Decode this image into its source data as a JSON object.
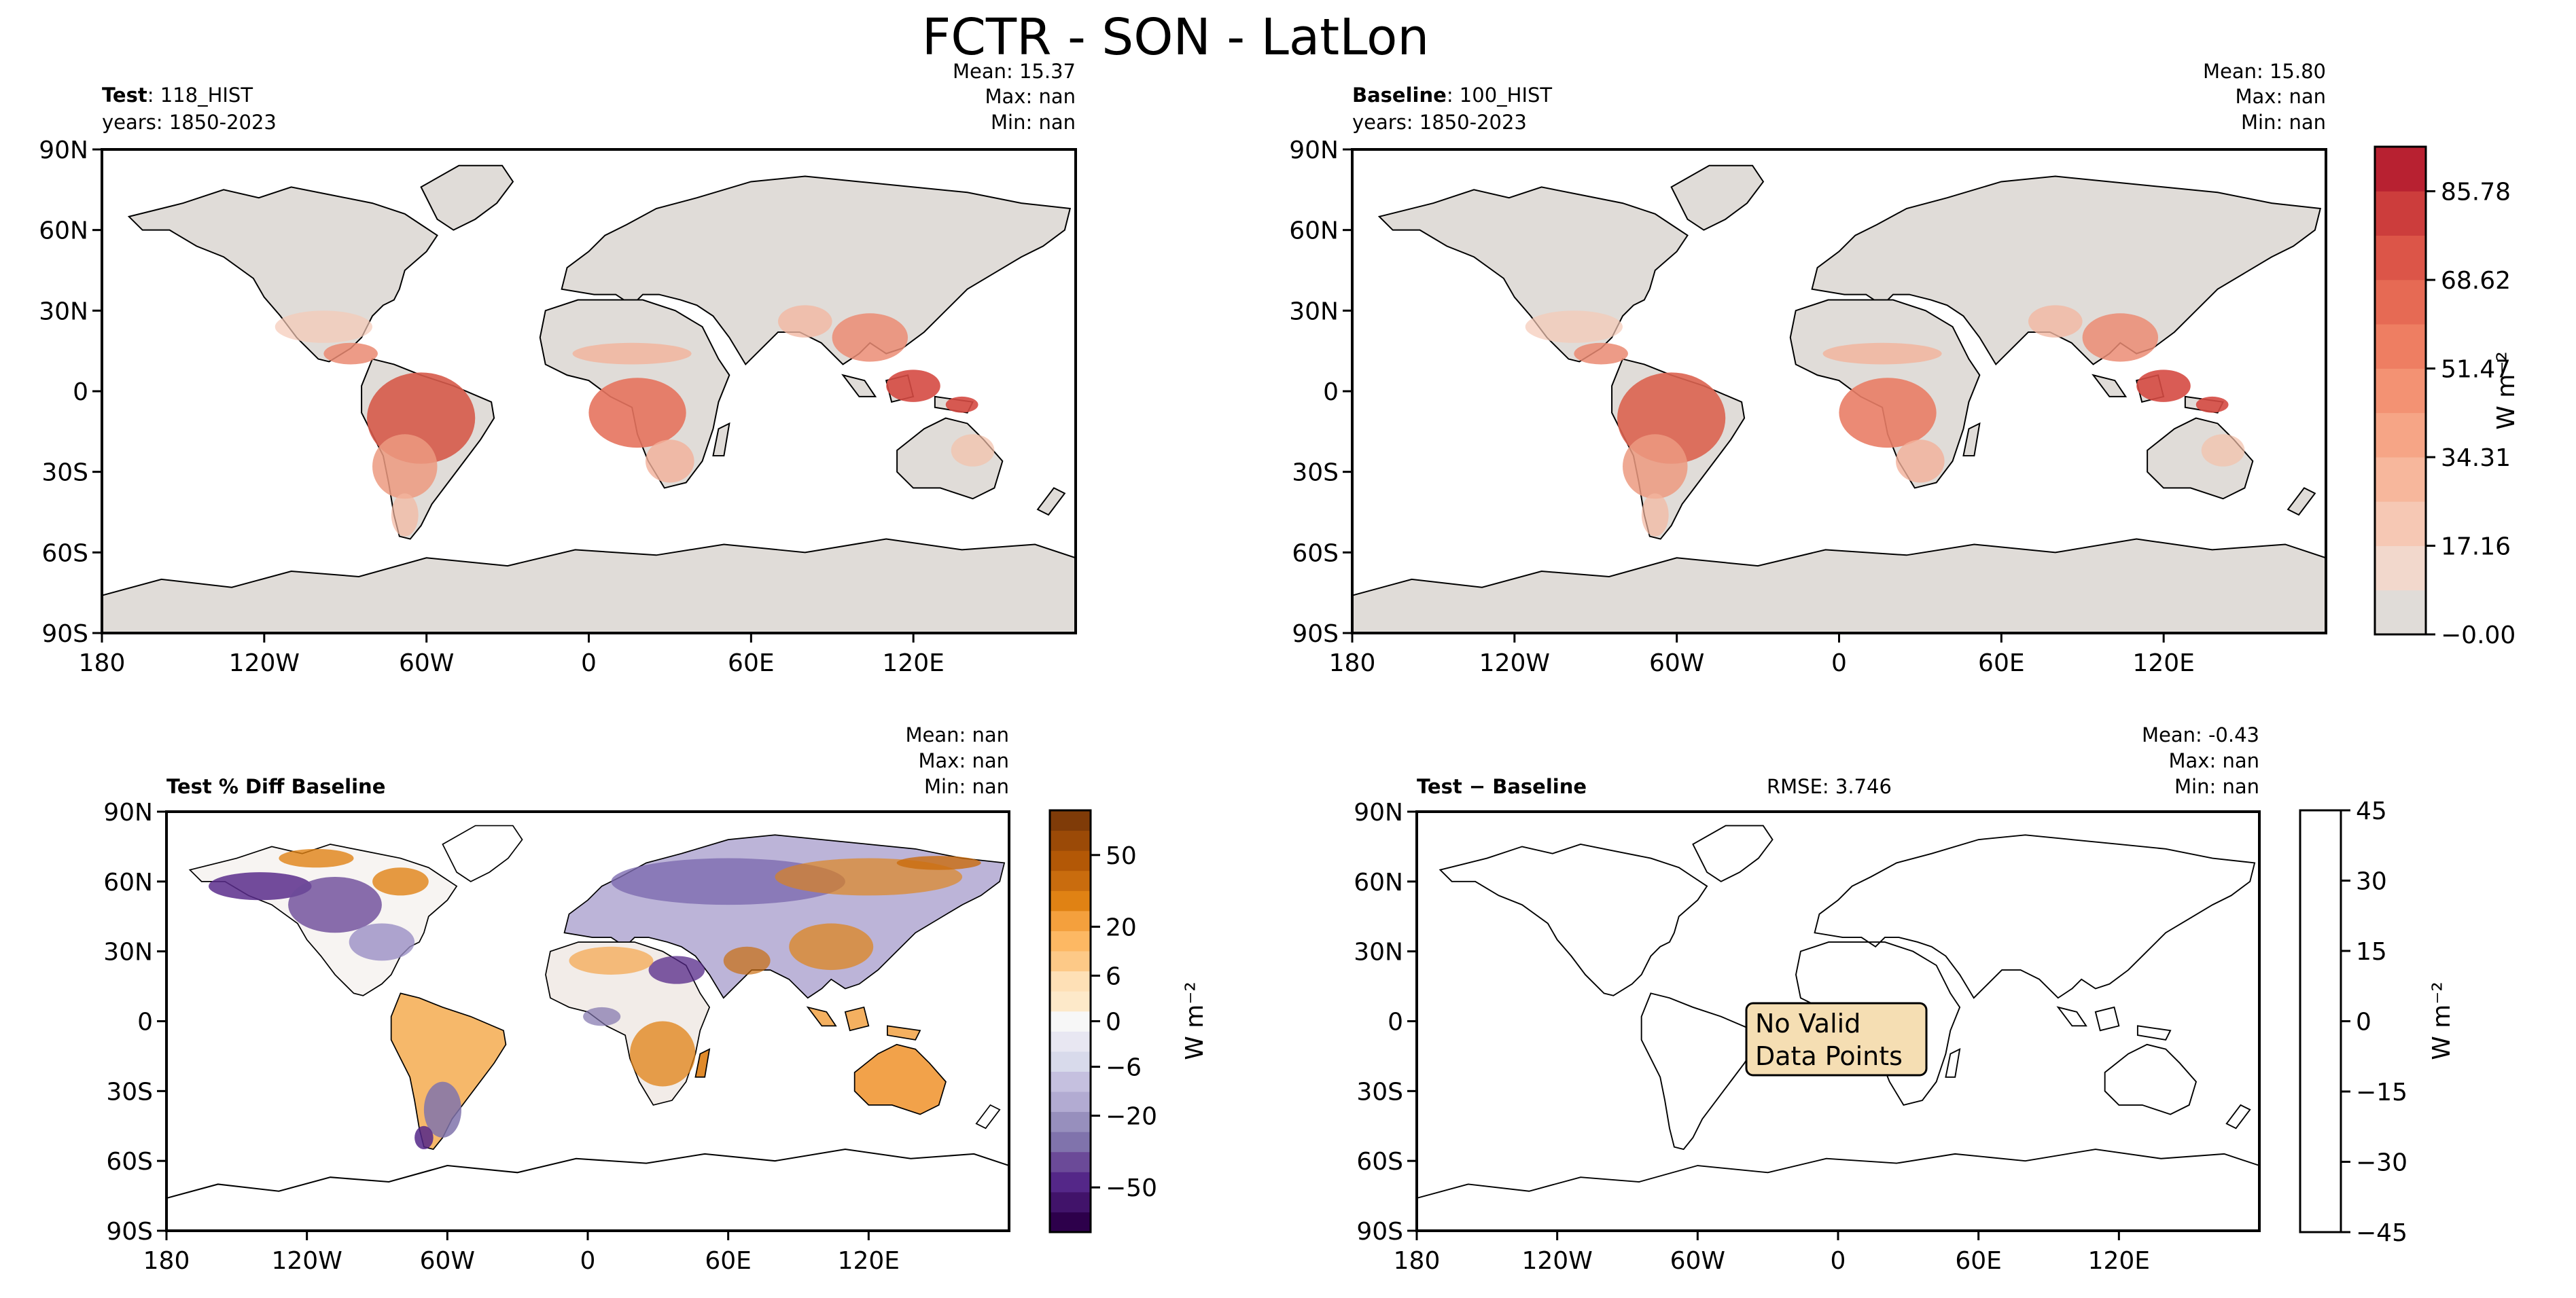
{
  "figure": {
    "title": "FCTR - SON - LatLon"
  },
  "axes_labels": {
    "lat_ticks": [
      "90N",
      "60N",
      "30N",
      "0",
      "30S",
      "60S",
      "90S"
    ],
    "lon_ticks": [
      "180",
      "120W",
      "60W",
      "0",
      "60E",
      "120E"
    ]
  },
  "panels": {
    "test": {
      "name_bold": "Test",
      "name_rest": ": 118_HIST",
      "years": "years: 1850-2023",
      "mean": "Mean: 15.37",
      "max": "Max:   nan",
      "min": "Min:   nan"
    },
    "baseline": {
      "name_bold": "Baseline",
      "name_rest": ": 100_HIST",
      "years": "years: 1850-2023",
      "mean": "Mean: 15.80",
      "max": "Max:   nan",
      "min": "Min:   nan"
    },
    "pctdiff": {
      "title": "Test % Diff Baseline",
      "mean": "Mean:   nan",
      "max": "Max:   nan",
      "min": "Min:   nan"
    },
    "diff": {
      "title_bold": "Test",
      "title_rest": " − Baseline",
      "rmse": "RMSE: 3.746",
      "mean": "Mean: -0.43",
      "max": "Max:   nan",
      "min": "Min:   nan",
      "no_data_line1": "No Valid",
      "no_data_line2": "Data Points"
    }
  },
  "chart_data": [
    {
      "type": "heatmap",
      "panel": "Test",
      "title": "Test: 118_HIST",
      "subtitle": "years: 1850-2023",
      "stats": {
        "mean": 15.37,
        "max": "nan",
        "min": "nan"
      },
      "xlim": [
        -180,
        180
      ],
      "ylim": [
        -90,
        90
      ],
      "colorbar": "shared with Baseline"
    },
    {
      "type": "heatmap",
      "panel": "Baseline",
      "title": "Baseline: 100_HIST",
      "subtitle": "years: 1850-2023",
      "stats": {
        "mean": 15.8,
        "max": "nan",
        "min": "nan"
      },
      "xlim": [
        -180,
        180
      ],
      "ylim": [
        -90,
        90
      ],
      "colorbar": {
        "label": "W m⁻²",
        "ticks": [
          "−0.00",
          "17.16",
          "34.31",
          "51.47",
          "68.62",
          "85.78"
        ],
        "range": [
          0,
          94.4
        ],
        "levels": 11,
        "colors": [
          "#e0dcd8",
          "#f2d8cc",
          "#f6c8b4",
          "#f7b79c",
          "#f6a586",
          "#f39273",
          "#ee7e62",
          "#e66a54",
          "#dc5548",
          "#cc3d3c",
          "#b82131"
        ]
      }
    },
    {
      "type": "heatmap",
      "panel": "Test % Diff Baseline",
      "title": "Test % Diff Baseline",
      "stats": {
        "mean": "nan",
        "max": "nan",
        "min": "nan"
      },
      "xlim": [
        -180,
        180
      ],
      "ylim": [
        -90,
        90
      ],
      "colorbar": {
        "label": "W m⁻²",
        "ticks": [
          "−50",
          "−20",
          "−6",
          "0",
          "6",
          "20",
          "50"
        ],
        "range": [
          -70,
          70
        ],
        "colors": [
          "#2d004b",
          "#41136a",
          "#542788",
          "#6b4a98",
          "#8073ac",
          "#978fbd",
          "#b2abd2",
          "#c5c0df",
          "#d8daeb",
          "#e8e7f2",
          "#f7f7f7",
          "#fde9c9",
          "#fee0b6",
          "#fdc987",
          "#fdb863",
          "#f4a03d",
          "#e08214",
          "#c96c0e",
          "#b35806",
          "#9b4a07",
          "#7f3b08"
        ]
      }
    },
    {
      "type": "heatmap",
      "panel": "Test − Baseline",
      "title": "Test − Baseline",
      "stats": {
        "mean": -0.43,
        "max": "nan",
        "min": "nan",
        "rmse": 3.746
      },
      "xlim": [
        -180,
        180
      ],
      "ylim": [
        -90,
        90
      ],
      "annotation": "No Valid Data Points",
      "colorbar": {
        "label": "W m⁻²",
        "ticks": [
          "−45",
          "−30",
          "−15",
          "0",
          "15",
          "30",
          "45"
        ],
        "range": [
          -45,
          45
        ]
      }
    }
  ]
}
